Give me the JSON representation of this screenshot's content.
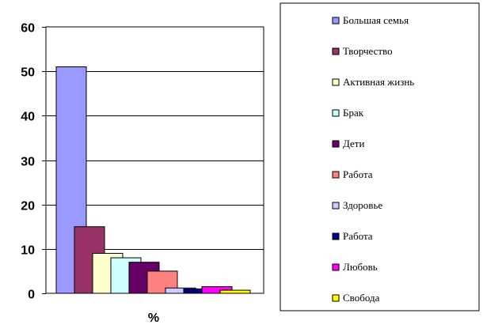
{
  "chart_data": {
    "type": "bar",
    "x_category": "%",
    "xlabel": "",
    "ylabel": "",
    "ylim": [
      0,
      60
    ],
    "y_ticks": [
      0,
      10,
      20,
      30,
      40,
      50,
      60
    ],
    "grid": true,
    "legend_position": "right",
    "series": [
      {
        "name": "Большая семья",
        "value": 51,
        "color": "#9999ff"
      },
      {
        "name": "Творчество",
        "value": 15,
        "color": "#993366"
      },
      {
        "name": "Активная жизнь",
        "value": 9,
        "color": "#ffffcc"
      },
      {
        "name": "Брак",
        "value": 8,
        "color": "#ccffff"
      },
      {
        "name": "Дети",
        "value": 7,
        "color": "#660066"
      },
      {
        "name": "Работа",
        "value": 5,
        "color": "#ff8080"
      },
      {
        "name": "Здоровье",
        "value": 1.2,
        "color": "#ccccff"
      },
      {
        "name": "Работа",
        "value": 1,
        "color": "#000080"
      },
      {
        "name": "Любовь",
        "value": 1.5,
        "color": "#ff00ff"
      },
      {
        "name": "Свобода",
        "value": 0.7,
        "color": "#ffff00"
      }
    ]
  }
}
